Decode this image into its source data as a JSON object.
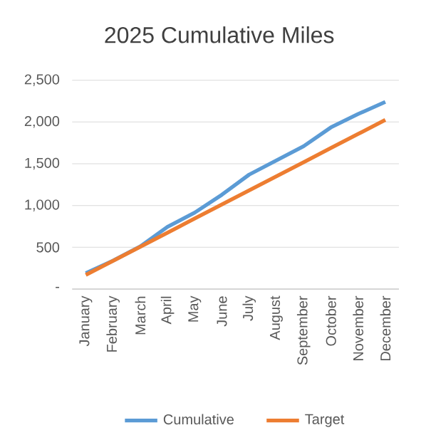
{
  "chart_data": {
    "type": "line",
    "title": "2025 Cumulative Miles",
    "categories": [
      "January",
      "February",
      "March",
      "April",
      "May",
      "June",
      "July",
      "August",
      "September",
      "October",
      "November",
      "December"
    ],
    "series": [
      {
        "name": "Cumulative",
        "color": "#5b9bd5",
        "values": [
          190,
          340,
          510,
          745,
          915,
          1130,
          1370,
          1540,
          1710,
          1935,
          2095,
          2240
        ]
      },
      {
        "name": "Target",
        "color": "#ed7d31",
        "values": [
          169,
          338,
          506,
          675,
          844,
          1013,
          1181,
          1350,
          1519,
          1688,
          1856,
          2025
        ]
      }
    ],
    "ylim": [
      0,
      2500
    ],
    "yticks": [
      {
        "value": 0,
        "label": "-"
      },
      {
        "value": 500,
        "label": "500"
      },
      {
        "value": 1000,
        "label": "1,000"
      },
      {
        "value": 1500,
        "label": "1,500"
      },
      {
        "value": 2000,
        "label": "2,000"
      },
      {
        "value": 2500,
        "label": "2,500"
      }
    ],
    "grid": "y",
    "legend": "bottom",
    "marker": "none",
    "line_style": "solid"
  }
}
